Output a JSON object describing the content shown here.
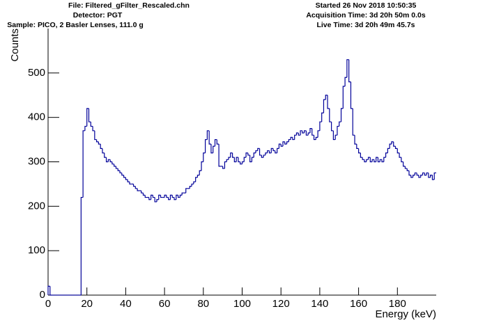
{
  "chart_data": {
    "type": "histogram",
    "header_left": [
      "File: Filtered_gFilter_Rescaled.chn",
      "Detector: PGT",
      "Sample: PICO, 2 Basler Lenses, 111.0 g"
    ],
    "header_right": [
      "Started 26 Nov 2018 10:50:35",
      "Acquisition Time: 3d 20h 50m 0.0s",
      "Live Time: 3d 20h 49m 45.7s"
    ],
    "ylabel": "Counts",
    "xlabel": "Energy (keV)",
    "color": "#000099",
    "xlim": [
      0,
      200
    ],
    "ylim": [
      0,
      600
    ],
    "xticks": [
      0,
      20,
      40,
      60,
      80,
      100,
      120,
      140,
      160,
      180
    ],
    "yticks": [
      0,
      100,
      200,
      300,
      400,
      500
    ],
    "bins": [
      0,
      1,
      2,
      3,
      4,
      5,
      6,
      7,
      8,
      9,
      10,
      11,
      12,
      13,
      14,
      15,
      16,
      17,
      18,
      19,
      20,
      21,
      22,
      23,
      24,
      25,
      26,
      27,
      28,
      29,
      30,
      31,
      32,
      33,
      34,
      35,
      36,
      37,
      38,
      39,
      40,
      41,
      42,
      43,
      44,
      45,
      46,
      47,
      48,
      49,
      50,
      51,
      52,
      53,
      54,
      55,
      56,
      57,
      58,
      59,
      60,
      61,
      62,
      63,
      64,
      65,
      66,
      67,
      68,
      69,
      70,
      71,
      72,
      73,
      74,
      75,
      76,
      77,
      78,
      79,
      80,
      81,
      82,
      83,
      84,
      85,
      86,
      87,
      88,
      89,
      90,
      91,
      92,
      93,
      94,
      95,
      96,
      97,
      98,
      99,
      100,
      101,
      102,
      103,
      104,
      105,
      106,
      107,
      108,
      109,
      110,
      111,
      112,
      113,
      114,
      115,
      116,
      117,
      118,
      119,
      120,
      121,
      122,
      123,
      124,
      125,
      126,
      127,
      128,
      129,
      130,
      131,
      132,
      133,
      134,
      135,
      136,
      137,
      138,
      139,
      140,
      141,
      142,
      143,
      144,
      145,
      146,
      147,
      148,
      149,
      150,
      151,
      152,
      153,
      154,
      155,
      156,
      157,
      158,
      159,
      160,
      161,
      162,
      163,
      164,
      165,
      166,
      167,
      168,
      169,
      170,
      171,
      172,
      173,
      174,
      175,
      176,
      177,
      178,
      179,
      180,
      181,
      182,
      183,
      184,
      185,
      186,
      187,
      188,
      189,
      190,
      191,
      192,
      193,
      194,
      195,
      196,
      197,
      198,
      199,
      200
    ],
    "values": [
      20,
      0,
      0,
      0,
      0,
      0,
      0,
      0,
      0,
      0,
      0,
      0,
      0,
      0,
      0,
      0,
      0,
      220,
      370,
      380,
      420,
      390,
      380,
      370,
      350,
      345,
      340,
      330,
      320,
      310,
      300,
      305,
      300,
      295,
      290,
      285,
      280,
      275,
      270,
      265,
      260,
      255,
      250,
      250,
      245,
      240,
      235,
      235,
      230,
      225,
      220,
      220,
      215,
      225,
      220,
      210,
      215,
      225,
      220,
      220,
      225,
      220,
      215,
      225,
      220,
      215,
      225,
      220,
      225,
      230,
      230,
      240,
      240,
      245,
      250,
      255,
      265,
      270,
      280,
      300,
      320,
      350,
      370,
      340,
      320,
      335,
      350,
      340,
      290,
      290,
      285,
      300,
      305,
      310,
      320,
      310,
      300,
      310,
      300,
      295,
      300,
      310,
      320,
      315,
      300,
      310,
      320,
      325,
      330,
      315,
      310,
      315,
      320,
      325,
      320,
      330,
      325,
      320,
      330,
      340,
      335,
      345,
      340,
      345,
      350,
      355,
      350,
      360,
      365,
      360,
      370,
      365,
      370,
      360,
      365,
      375,
      360,
      350,
      355,
      370,
      390,
      410,
      440,
      450,
      420,
      390,
      370,
      350,
      360,
      380,
      390,
      420,
      470,
      490,
      530,
      480,
      420,
      360,
      340,
      330,
      320,
      310,
      305,
      300,
      305,
      310,
      300,
      305,
      300,
      310,
      300,
      305,
      300,
      310,
      320,
      330,
      340,
      345,
      335,
      330,
      320,
      310,
      300,
      290,
      285,
      280,
      270,
      265,
      270,
      275,
      270,
      265,
      270,
      275,
      270,
      275,
      265,
      270,
      260,
      275
    ]
  }
}
